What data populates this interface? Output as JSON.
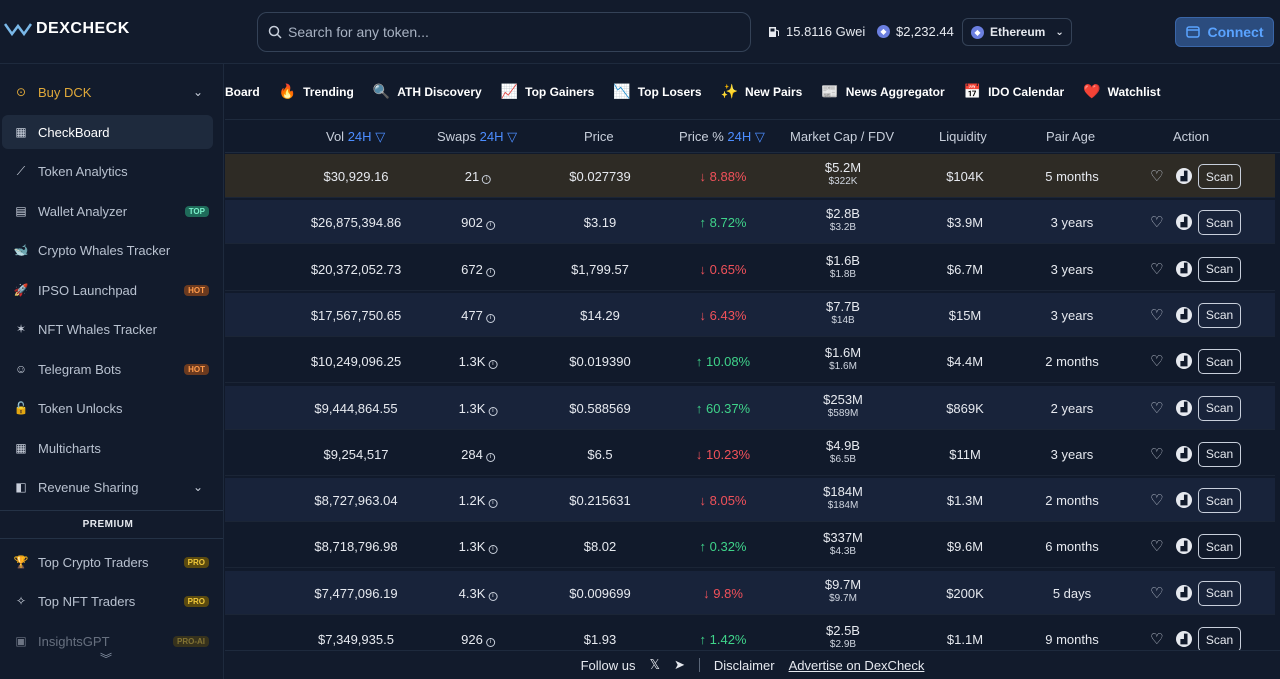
{
  "app": {
    "logo_text": "DEXCHECK"
  },
  "search": {
    "placeholder": "Search for any token..."
  },
  "header": {
    "gas": "15.8116 Gwei",
    "eth_price": "$2,232.44",
    "chain": "Ethereum",
    "connect_label": "Connect"
  },
  "sidebar": {
    "items": [
      {
        "label": "Buy DCK",
        "icon": "coin-icon"
      },
      {
        "label": "CheckBoard",
        "icon": "grid-icon"
      },
      {
        "label": "Token Analytics",
        "icon": "analytics-icon"
      },
      {
        "label": "Wallet Analyzer",
        "icon": "wallet-icon",
        "badge": "TOP"
      },
      {
        "label": "Crypto Whales Tracker",
        "icon": "whale-icon"
      },
      {
        "label": "IPSO Launchpad",
        "icon": "rocket-icon",
        "badge": "HOT"
      },
      {
        "label": "NFT Whales Tracker",
        "icon": "nft-icon"
      },
      {
        "label": "Telegram Bots",
        "icon": "bot-icon",
        "badge": "HOT"
      },
      {
        "label": "Token Unlocks",
        "icon": "lock-icon"
      },
      {
        "label": "Multicharts",
        "icon": "multichart-icon"
      },
      {
        "label": "Revenue Sharing",
        "icon": "revenue-icon"
      }
    ],
    "premium_label": "PREMIUM",
    "premium_items": [
      {
        "label": "Top Crypto Traders",
        "icon": "trophy-icon",
        "badge": "PRO"
      },
      {
        "label": "Top NFT Traders",
        "icon": "nft-traders-icon",
        "badge": "PRO"
      },
      {
        "label": "InsightsGPT",
        "icon": "gpt-icon",
        "badge": "PRO-AI"
      }
    ]
  },
  "tabs": [
    {
      "label": "Board",
      "icon": ""
    },
    {
      "label": "Trending",
      "icon": "🔥"
    },
    {
      "label": "ATH Discovery",
      "icon": "🔍"
    },
    {
      "label": "Top Gainers",
      "icon": "📈"
    },
    {
      "label": "Top Losers",
      "icon": "📉"
    },
    {
      "label": "New Pairs",
      "icon": "✨"
    },
    {
      "label": "News Aggregator",
      "icon": "📰"
    },
    {
      "label": "IDO Calendar",
      "icon": "📅"
    },
    {
      "label": "Watchlist",
      "icon": "❤️"
    }
  ],
  "table": {
    "headers": {
      "vol": "Vol",
      "vol_period": "24H",
      "swaps": "Swaps",
      "swaps_period": "24H",
      "price": "Price",
      "price_pct": "Price %",
      "price_pct_period": "24H",
      "mcap": "Market Cap / FDV",
      "liquidity": "Liquidity",
      "age": "Pair Age",
      "action": "Action"
    },
    "scan_label": "Scan",
    "rows": [
      {
        "vol": "$30,929.16",
        "swaps": "21",
        "price": "$0.027739",
        "pct": "8.88%",
        "dir": "down",
        "mcap": "$5.2M",
        "fdv": "$322K",
        "liq": "$104K",
        "age": "5 months"
      },
      {
        "vol": "$26,875,394.86",
        "swaps": "902",
        "price": "$3.19",
        "pct": "8.72%",
        "dir": "up",
        "mcap": "$2.8B",
        "fdv": "$3.2B",
        "liq": "$3.9M",
        "age": "3 years"
      },
      {
        "vol": "$20,372,052.73",
        "swaps": "672",
        "price": "$1,799.57",
        "pct": "0.65%",
        "dir": "down",
        "mcap": "$1.6B",
        "fdv": "$1.8B",
        "liq": "$6.7M",
        "age": "3 years"
      },
      {
        "vol": "$17,567,750.65",
        "swaps": "477",
        "price": "$14.29",
        "pct": "6.43%",
        "dir": "down",
        "mcap": "$7.7B",
        "fdv": "$14B",
        "liq": "$15M",
        "age": "3 years"
      },
      {
        "vol": "$10,249,096.25",
        "swaps": "1.3K",
        "price": "$0.019390",
        "pct": "10.08%",
        "dir": "up",
        "mcap": "$1.6M",
        "fdv": "$1.6M",
        "liq": "$4.4M",
        "age": "2 months"
      },
      {
        "vol": "$9,444,864.55",
        "swaps": "1.3K",
        "price": "$0.588569",
        "pct": "60.37%",
        "dir": "up",
        "mcap": "$253M",
        "fdv": "$589M",
        "liq": "$869K",
        "age": "2 years"
      },
      {
        "vol": "$9,254,517",
        "swaps": "284",
        "price": "$6.5",
        "pct": "10.23%",
        "dir": "down",
        "mcap": "$4.9B",
        "fdv": "$6.5B",
        "liq": "$11M",
        "age": "3 years"
      },
      {
        "vol": "$8,727,963.04",
        "swaps": "1.2K",
        "price": "$0.215631",
        "pct": "8.05%",
        "dir": "down",
        "mcap": "$184M",
        "fdv": "$184M",
        "liq": "$1.3M",
        "age": "2 months"
      },
      {
        "vol": "$8,718,796.98",
        "swaps": "1.3K",
        "price": "$8.02",
        "pct": "0.32%",
        "dir": "up",
        "mcap": "$337M",
        "fdv": "$4.3B",
        "liq": "$9.6M",
        "age": "6 months"
      },
      {
        "vol": "$7,477,096.19",
        "swaps": "4.3K",
        "price": "$0.009699",
        "pct": "9.8%",
        "dir": "down",
        "mcap": "$9.7M",
        "fdv": "$9.7M",
        "liq": "$200K",
        "age": "5 days"
      },
      {
        "vol": "$7,349,935.5",
        "swaps": "926",
        "price": "$1.93",
        "pct": "1.42%",
        "dir": "up",
        "mcap": "$2.5B",
        "fdv": "$2.9B",
        "liq": "$1.1M",
        "age": "9 months"
      }
    ]
  },
  "footer": {
    "follow": "Follow us",
    "disclaimer": "Disclaimer",
    "advertise": "Advertise on DexCheck"
  },
  "colors": {
    "background": "#111a2b",
    "accent": "#4c8dff",
    "up": "#3fd38a",
    "down": "#f0515a",
    "buy": "#e0a93a"
  }
}
